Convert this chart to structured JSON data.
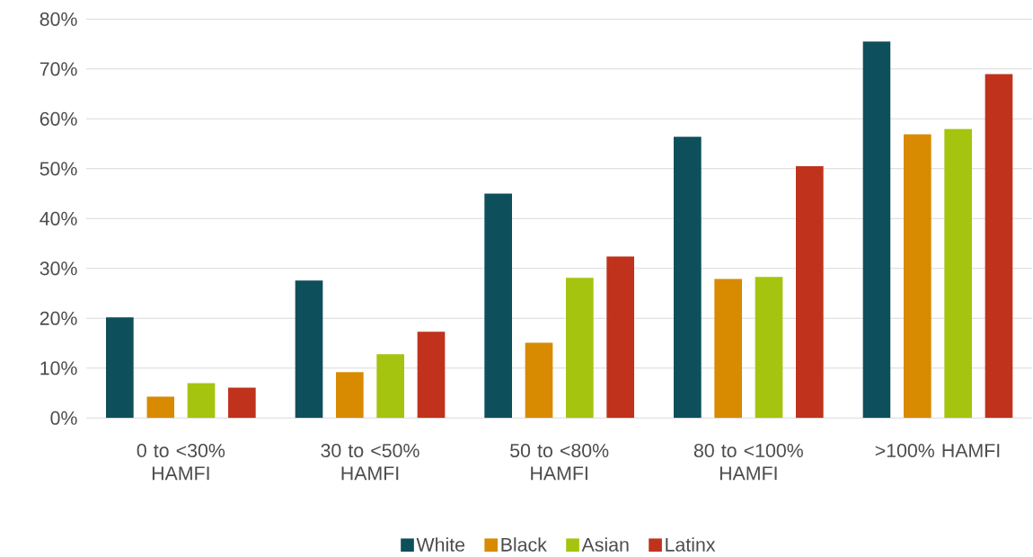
{
  "chart_data": {
    "type": "bar",
    "categories": [
      "0 to <30% HAMFI",
      "30 to <50% HAMFI",
      "50 to <80% HAMFI",
      "80 to <100% HAMFI",
      ">100% HAMFI"
    ],
    "series": [
      {
        "name": "White",
        "color": "#0e4f5c",
        "values": [
          20.2,
          27.6,
          45.0,
          56.4,
          75.5
        ]
      },
      {
        "name": "Black",
        "color": "#d88a00",
        "values": [
          4.3,
          9.2,
          15.1,
          27.9,
          56.9
        ]
      },
      {
        "name": "Asian",
        "color": "#a5c40f",
        "values": [
          7.0,
          12.8,
          28.1,
          28.3,
          58.0
        ]
      },
      {
        "name": "Latinx",
        "color": "#c0321c",
        "values": [
          6.1,
          17.3,
          32.4,
          50.5,
          69.0
        ]
      }
    ],
    "ylim": [
      0,
      80
    ],
    "yticks": [
      {
        "value": 0,
        "label": "0%"
      },
      {
        "value": 10,
        "label": "10%"
      },
      {
        "value": 20,
        "label": "20%"
      },
      {
        "value": 30,
        "label": "30%"
      },
      {
        "value": 40,
        "label": "40%"
      },
      {
        "value": 50,
        "label": "50%"
      },
      {
        "value": 60,
        "label": "60%"
      },
      {
        "value": 70,
        "label": "70%"
      },
      {
        "value": 80,
        "label": "80%"
      }
    ],
    "grid": "y",
    "legend": "bottom"
  }
}
